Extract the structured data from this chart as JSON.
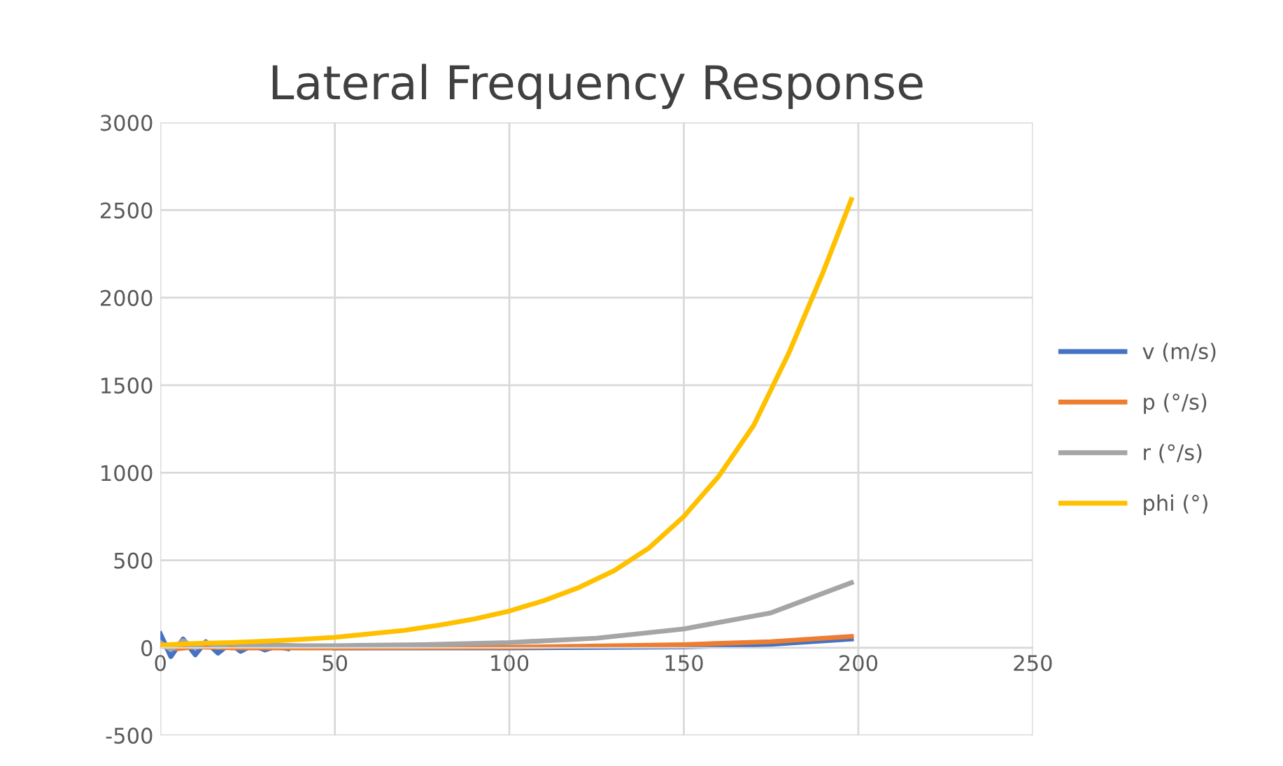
{
  "chart_data": {
    "type": "line",
    "title": "Lateral Frequency Response",
    "xlim": [
      0,
      250
    ],
    "xticks": [
      0,
      50,
      100,
      150,
      200,
      250
    ],
    "ylim": [
      -500,
      3000
    ],
    "yticks": [
      -500,
      0,
      500,
      1000,
      1500,
      2000,
      2500,
      3000
    ],
    "grid": true,
    "legend": "right",
    "marker": "none",
    "line_style": "solid",
    "series": [
      {
        "name": "v (m/s)",
        "color": "#4472c4",
        "x": [
          0,
          3,
          6.5,
          10,
          13,
          16.5,
          20,
          23,
          26.5,
          30,
          33,
          36.5,
          40,
          50,
          100,
          150,
          175,
          198
        ],
        "values": [
          80,
          -50,
          50,
          -40,
          35,
          -30,
          25,
          -20,
          15,
          -12,
          8,
          -5,
          null,
          0,
          0,
          5,
          20,
          50
        ]
      },
      {
        "name": "p (°/s)",
        "color": "#ed7d31",
        "x": [
          0,
          5,
          10,
          20,
          50,
          100,
          150,
          175,
          198
        ],
        "values": [
          10,
          -5,
          5,
          0,
          0,
          3,
          18,
          35,
          65
        ]
      },
      {
        "name": "r (°/s)",
        "color": "#a5a5a5",
        "x": [
          0,
          3,
          6.5,
          10,
          13,
          16.5,
          20,
          25,
          30,
          40,
          50,
          75,
          100,
          125,
          150,
          175,
          198
        ],
        "values": [
          30,
          -10,
          40,
          0,
          30,
          5,
          25,
          10,
          18,
          12,
          12,
          18,
          30,
          55,
          108,
          200,
          372
        ]
      },
      {
        "name": "phi (°)",
        "color": "#ffc000",
        "x": [
          0,
          10,
          20,
          30,
          40,
          50,
          60,
          70,
          80,
          90,
          100,
          110,
          120,
          130,
          140,
          150,
          160,
          170,
          180,
          190,
          198
        ],
        "values": [
          15,
          25,
          30,
          38,
          48,
          60,
          80,
          100,
          130,
          165,
          210,
          270,
          345,
          440,
          570,
          750,
          980,
          1270,
          1680,
          2150,
          2560
        ]
      }
    ]
  }
}
